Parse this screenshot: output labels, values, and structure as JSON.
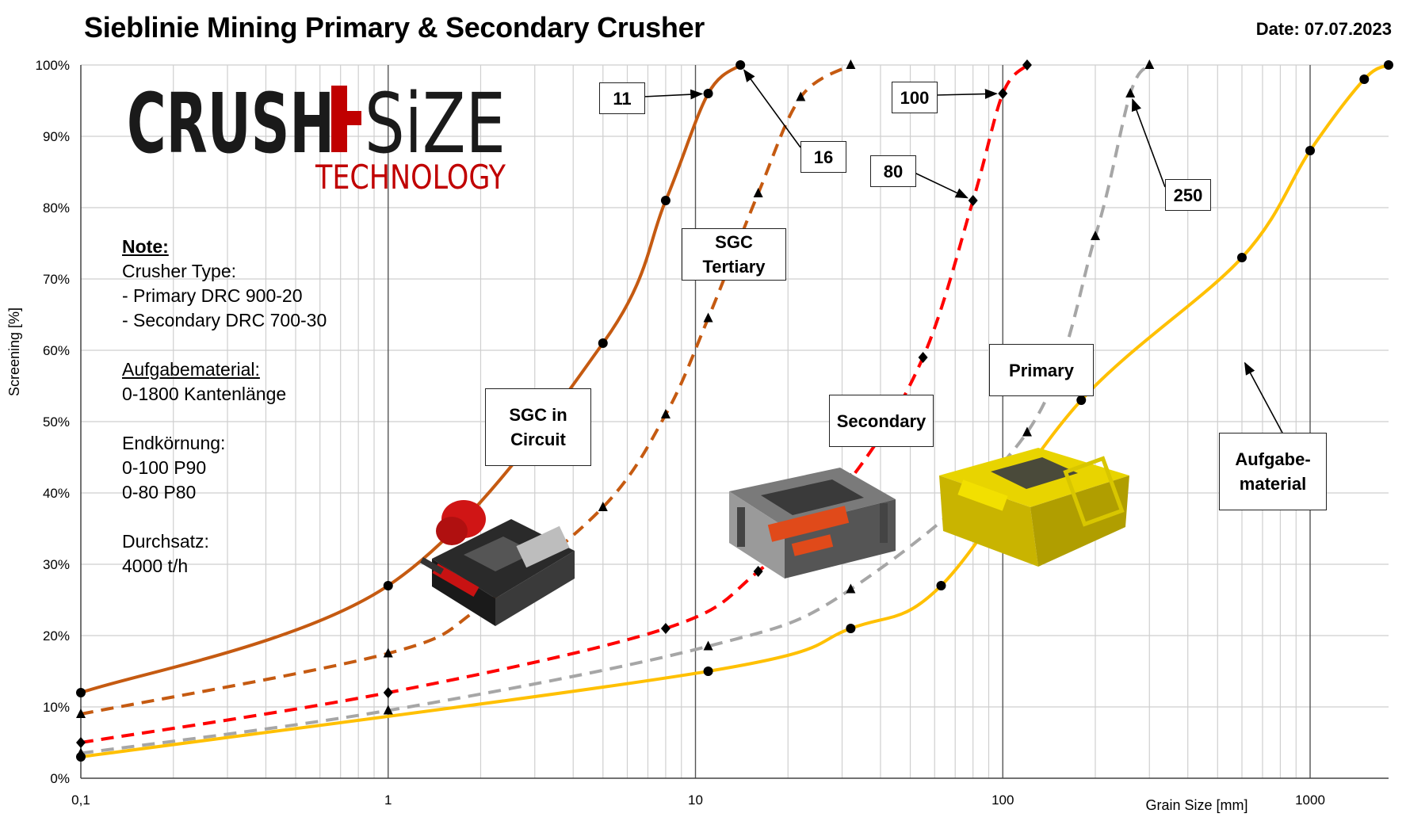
{
  "title": "Sieblinie Mining Primary & Secondary Crusher",
  "date": "Date: 07.07.2023",
  "logo": {
    "line1_left": "CRUSH",
    "line1_right": "SiZE",
    "line2": "TECHNOLOGY"
  },
  "note": {
    "heading": "Note:",
    "crusher_type": "Crusher Type:",
    "primary": "- Primary DRC 900-20",
    "secondary": "- Secondary DRC 700-30",
    "feed_heading": "Aufgabematerial:",
    "feed_value": "0-1800 Kantenlänge",
    "final_heading": "Endkörnung:",
    "final_p90": "0-100 P90",
    "final_p80": "0-80 P80",
    "throughput_heading": "Durchsatz:",
    "throughput_value": "4000 t/h"
  },
  "callouts": {
    "c11": "11",
    "c16": "16",
    "c80": "80",
    "c100": "100",
    "c250": "250",
    "sgc_circuit_1": "SGC in",
    "sgc_circuit_2": "Circuit",
    "sgc_tertiary_1": "SGC",
    "sgc_tertiary_2": "Tertiary",
    "secondary": "Secondary",
    "primary": "Primary",
    "feed_1": "Aufgabe-",
    "feed_2": "material"
  },
  "chart_data": {
    "type": "line",
    "title": "Sieblinie Mining Primary & Secondary Crusher",
    "xlabel": "Grain Size [mm]",
    "ylabel": "Screening [%]",
    "xscale": "log",
    "xlim": [
      0.1,
      1800
    ],
    "ylim": [
      0,
      100
    ],
    "x_ticks": [
      "0,1",
      "1",
      "10",
      "100",
      "1000"
    ],
    "y_ticks": [
      "0%",
      "10%",
      "20%",
      "30%",
      "40%",
      "50%",
      "60%",
      "70%",
      "80%",
      "90%",
      "100%"
    ],
    "grid": true,
    "series": [
      {
        "name": "SGC in Circuit",
        "color": "#C55A11",
        "style": "solid",
        "marker": "circle",
        "x": [
          0.1,
          1,
          5,
          8,
          11,
          14
        ],
        "y": [
          12,
          27,
          61,
          81,
          96,
          100
        ]
      },
      {
        "name": "SGC Tertiary",
        "color": "#C55A11",
        "style": "dashed",
        "marker": "triangle",
        "x": [
          0.1,
          1,
          2,
          5,
          8,
          11,
          16,
          22,
          32
        ],
        "y": [
          9,
          17.5,
          24,
          38,
          51,
          64.5,
          82,
          95.5,
          100
        ]
      },
      {
        "name": "Secondary",
        "color": "#FF0000",
        "style": "dashed",
        "marker": "diamond",
        "x": [
          0.1,
          1,
          8,
          16,
          32,
          55,
          80,
          100,
          120
        ],
        "y": [
          5,
          12,
          21,
          29,
          42,
          59,
          81,
          96,
          100
        ]
      },
      {
        "name": "Primary",
        "color": "#A6A6A6",
        "style": "dashed",
        "marker": "triangle",
        "x": [
          0.1,
          1,
          11,
          32,
          120,
          200,
          260,
          300
        ],
        "y": [
          3.5,
          9.5,
          18.5,
          26.5,
          48.5,
          76,
          96,
          100
        ]
      },
      {
        "name": "Aufgabematerial",
        "color": "#FFC000",
        "style": "solid",
        "marker": "circle",
        "x": [
          0.1,
          11,
          32,
          63,
          180,
          600,
          1000,
          1500,
          1800
        ],
        "y": [
          3,
          15,
          21,
          27,
          53,
          73,
          88,
          98,
          100
        ]
      }
    ]
  }
}
